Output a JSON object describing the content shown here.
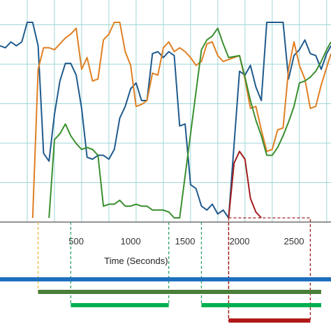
{
  "chart_data": {
    "type": "line",
    "xlabel": "Time (Seconds)",
    "ylabel": "",
    "title": "",
    "xlim": [
      -200,
      2840
    ],
    "ylim": [
      0,
      100
    ],
    "x_ticks": [
      500,
      1000,
      1500,
      2000,
      2500
    ],
    "grid": true,
    "series": [
      {
        "color": "#1f5a8c",
        "points": [
          [
            -200,
            88
          ],
          [
            -150,
            87
          ],
          [
            -100,
            90
          ],
          [
            -50,
            88
          ],
          [
            0,
            90
          ],
          [
            50,
            100
          ],
          [
            100,
            100
          ],
          [
            150,
            88
          ],
          [
            200,
            33
          ],
          [
            250,
            29
          ],
          [
            300,
            53
          ],
          [
            350,
            70
          ],
          [
            400,
            79
          ],
          [
            450,
            79
          ],
          [
            500,
            73
          ],
          [
            550,
            56
          ],
          [
            600,
            31
          ],
          [
            650,
            30
          ],
          [
            700,
            32
          ],
          [
            750,
            32
          ],
          [
            800,
            30
          ],
          [
            850,
            35
          ],
          [
            900,
            51
          ],
          [
            950,
            57
          ],
          [
            1000,
            66
          ],
          [
            1050,
            69
          ],
          [
            1100,
            60
          ],
          [
            1150,
            60
          ],
          [
            1200,
            84
          ],
          [
            1250,
            85
          ],
          [
            1300,
            82
          ],
          [
            1350,
            85
          ],
          [
            1400,
            83
          ],
          [
            1450,
            47
          ],
          [
            1500,
            48
          ],
          [
            1550,
            17
          ],
          [
            1600,
            15
          ],
          [
            1650,
            6
          ],
          [
            1700,
            4
          ],
          [
            1750,
            7
          ],
          [
            1800,
            2
          ],
          [
            1850,
            4
          ],
          [
            1900,
            0
          ],
          [
            2000,
            75
          ],
          [
            2050,
            73
          ],
          [
            2100,
            78
          ],
          [
            2150,
            67
          ],
          [
            2200,
            60
          ],
          [
            2250,
            100
          ],
          [
            2300,
            100
          ],
          [
            2350,
            100
          ],
          [
            2400,
            100
          ],
          [
            2450,
            71
          ],
          [
            2500,
            83
          ],
          [
            2550,
            86
          ],
          [
            2600,
            91
          ],
          [
            2650,
            84
          ],
          [
            2700,
            83
          ],
          [
            2750,
            76
          ],
          [
            2800,
            84
          ],
          [
            2840,
            88
          ]
        ]
      },
      {
        "color": "#e07f22",
        "points": [
          [
            100,
            0
          ],
          [
            150,
            76
          ],
          [
            200,
            87
          ],
          [
            250,
            87
          ],
          [
            300,
            86
          ],
          [
            350,
            89
          ],
          [
            400,
            92
          ],
          [
            450,
            94
          ],
          [
            500,
            97
          ],
          [
            550,
            76
          ],
          [
            600,
            82
          ],
          [
            650,
            70
          ],
          [
            700,
            71
          ],
          [
            750,
            91
          ],
          [
            800,
            94
          ],
          [
            850,
            100
          ],
          [
            900,
            100
          ],
          [
            950,
            85
          ],
          [
            1000,
            78
          ],
          [
            1050,
            57
          ],
          [
            1100,
            58
          ],
          [
            1150,
            60
          ],
          [
            1200,
            74
          ],
          [
            1250,
            73
          ],
          [
            1300,
            87
          ],
          [
            1350,
            90
          ],
          [
            1400,
            85
          ],
          [
            1450,
            87
          ],
          [
            1500,
            85
          ],
          [
            1550,
            82
          ],
          [
            1600,
            78
          ],
          [
            1650,
            80
          ],
          [
            1700,
            89
          ],
          [
            1750,
            90
          ],
          [
            1800,
            83
          ],
          [
            1850,
            80
          ],
          [
            1900,
            81
          ],
          [
            2000,
            83
          ],
          [
            2050,
            71
          ],
          [
            2100,
            56
          ],
          [
            2150,
            57
          ],
          [
            2200,
            45
          ],
          [
            2250,
            34
          ],
          [
            2300,
            35
          ],
          [
            2350,
            45
          ],
          [
            2400,
            46
          ],
          [
            2450,
            76
          ],
          [
            2500,
            90
          ],
          [
            2550,
            78
          ],
          [
            2600,
            71
          ],
          [
            2650,
            56
          ],
          [
            2700,
            57
          ],
          [
            2750,
            68
          ],
          [
            2800,
            77
          ],
          [
            2840,
            84
          ]
        ]
      },
      {
        "color": "#3a8f2f",
        "points": [
          [
            250,
            0
          ],
          [
            300,
            40
          ],
          [
            350,
            43
          ],
          [
            400,
            48
          ],
          [
            450,
            42
          ],
          [
            500,
            38
          ],
          [
            550,
            35
          ],
          [
            600,
            36
          ],
          [
            650,
            35
          ],
          [
            700,
            32
          ],
          [
            750,
            6
          ],
          [
            800,
            7
          ],
          [
            850,
            7
          ],
          [
            900,
            9
          ],
          [
            950,
            6
          ],
          [
            1000,
            6
          ],
          [
            1050,
            7
          ],
          [
            1100,
            6
          ],
          [
            1150,
            6
          ],
          [
            1200,
            4
          ],
          [
            1250,
            4
          ],
          [
            1300,
            4
          ],
          [
            1350,
            3
          ],
          [
            1400,
            0
          ],
          [
            1450,
            0
          ],
          [
            1650,
            86
          ],
          [
            1700,
            91
          ],
          [
            1750,
            93
          ],
          [
            1800,
            97
          ],
          [
            1850,
            89
          ],
          [
            1900,
            82
          ],
          [
            2000,
            83
          ],
          [
            2050,
            72
          ],
          [
            2100,
            60
          ],
          [
            2150,
            50
          ],
          [
            2200,
            42
          ],
          [
            2250,
            32
          ],
          [
            2300,
            32
          ],
          [
            2350,
            36
          ],
          [
            2400,
            42
          ],
          [
            2450,
            49
          ],
          [
            2500,
            57
          ],
          [
            2550,
            69
          ],
          [
            2600,
            70
          ],
          [
            2650,
            72
          ],
          [
            2700,
            75
          ],
          [
            2750,
            80
          ],
          [
            2800,
            86
          ],
          [
            2840,
            90
          ]
        ]
      },
      {
        "color": "#a01d1d",
        "points": [
          [
            1900,
            0
          ],
          [
            1950,
            28
          ],
          [
            2000,
            34
          ],
          [
            2050,
            30
          ],
          [
            2100,
            10
          ],
          [
            2150,
            3
          ],
          [
            2200,
            0
          ]
        ]
      }
    ],
    "range_bars": [
      {
        "color": "#1f6fbf",
        "start": -200,
        "end": 2840,
        "marker_color": ""
      },
      {
        "color": "#4a7f3a",
        "start": 150,
        "end": 2750,
        "marker_color": "#e8b93a"
      },
      {
        "color": "#00b050",
        "start": 450,
        "end": 1350,
        "marker_color": "#2fa06a"
      },
      {
        "color": "#00b050",
        "start": 1650,
        "end": 2750,
        "marker_color": "#2fa06a"
      },
      {
        "color": "#b01818",
        "start": 1900,
        "end": 2650,
        "marker_color": "#a01d1d"
      }
    ],
    "dashed_box": {
      "start": 1900,
      "end": 2650,
      "color": "#a01d1d"
    }
  }
}
